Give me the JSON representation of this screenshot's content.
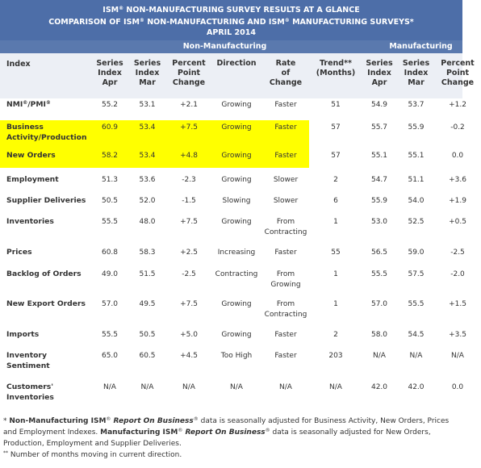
{
  "header": {
    "title_lines": [
      [
        "ISM",
        "®",
        " NON-MANUFACTURING SURVEY RESULTS AT A GLANCE"
      ],
      [
        "COMPARISON OF ISM",
        "®",
        " NON-MANUFACTURING AND ISM",
        "®",
        " MANUFACTURING SURVEYS*"
      ],
      [
        "APRIL 2014"
      ]
    ],
    "groups": [
      "Non-Manufacturing",
      "Manufacturing"
    ]
  },
  "table": {
    "columns": [
      [
        "Index"
      ],
      [
        "Series",
        "Index",
        "Apr"
      ],
      [
        "Series",
        "Index",
        "Mar"
      ],
      [
        "Percent",
        "Point",
        "Change"
      ],
      [
        "Direction"
      ],
      [
        "Rate",
        "of",
        "Change"
      ],
      [
        "Trend**",
        "(Months)"
      ],
      [
        "Series",
        "Index",
        "Apr"
      ],
      [
        "Series",
        "Index",
        "Mar"
      ],
      [
        "Percent",
        "Point",
        "Change"
      ]
    ],
    "rows": [
      [
        [
          "NMI",
          "®",
          "/PMI",
          "®"
        ],
        "55.2",
        "53.1",
        "+2.1",
        "Growing",
        "Faster",
        "51",
        "54.9",
        "53.7",
        "+1.2"
      ],
      [
        "Business\nActivity/Production",
        "60.9",
        "53.4",
        "+7.5",
        "Growing",
        "Faster",
        "57",
        "55.7",
        "55.9",
        "-0.2"
      ],
      [
        "New Orders",
        "58.2",
        "53.4",
        "+4.8",
        "Growing",
        "Faster",
        "57",
        "55.1",
        "55.1",
        "0.0"
      ],
      [
        "Employment",
        "51.3",
        "53.6",
        "-2.3",
        "Growing",
        "Slower",
        "2",
        "54.7",
        "51.1",
        "+3.6"
      ],
      [
        "Supplier Deliveries",
        "50.5",
        "52.0",
        "-1.5",
        "Slowing",
        "Slower",
        "6",
        "55.9",
        "54.0",
        "+1.9"
      ],
      [
        "Inventories",
        "55.5",
        "48.0",
        "+7.5",
        "Growing",
        "From\nContracting",
        "1",
        "53.0",
        "52.5",
        "+0.5"
      ],
      [
        "Prices",
        "60.8",
        "58.3",
        "+2.5",
        "Increasing",
        "Faster",
        "55",
        "56.5",
        "59.0",
        "-2.5"
      ],
      [
        "Backlog of Orders",
        "49.0",
        "51.5",
        "-2.5",
        "Contracting",
        "From\nGrowing",
        "1",
        "55.5",
        "57.5",
        "-2.0"
      ],
      [
        "New Export Orders",
        "57.0",
        "49.5",
        "+7.5",
        "Growing",
        "From\nContracting",
        "1",
        "57.0",
        "55.5",
        "+1.5"
      ],
      [
        "Imports",
        "55.5",
        "50.5",
        "+5.0",
        "Growing",
        "Faster",
        "2",
        "58.0",
        "54.5",
        "+3.5"
      ],
      [
        "Inventory\nSentiment",
        "65.0",
        "60.5",
        "+4.5",
        "Too High",
        "Faster",
        "203",
        "N/A",
        "N/A",
        "N/A"
      ],
      [
        "Customers'\nInventories",
        "N/A",
        "N/A",
        "N/A",
        "N/A",
        "N/A",
        "N/A",
        "42.0",
        "42.0",
        "0.0"
      ]
    ]
  },
  "footnotes": [
    [
      "* ",
      "Non-Manufacturing ISM",
      "®",
      " Report On Business",
      "®",
      " data is seasonally adjusted for Business Activity, New Orders, Prices and Employment Indexes. ",
      "Manufacturing ISM",
      "®",
      " Report On Business",
      "®",
      " data is seasonally adjusted for New Orders, Production, Employment and Supplier Deliveries."
    ],
    [
      "**",
      " Number of months moving in current direction."
    ]
  ]
}
